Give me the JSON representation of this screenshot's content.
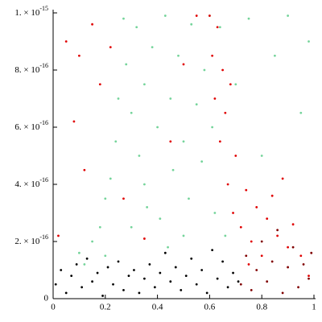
{
  "chart_data": {
    "type": "scatter",
    "xlim": [
      0,
      1
    ],
    "ylim": [
      0,
      1e-15
    ],
    "xticks": [
      0,
      0.2,
      0.4,
      0.6,
      0.8,
      1
    ],
    "yticks": [
      0,
      {
        "value": 2e-16,
        "label": "2. × 10",
        "exponent": "-16"
      },
      {
        "value": 4e-16,
        "label": "4. × 10",
        "exponent": "-16"
      },
      {
        "value": 6e-16,
        "label": "6. × 10",
        "exponent": "-16"
      },
      {
        "value": 8e-16,
        "label": "8. × 10",
        "exponent": "-16"
      },
      {
        "value": 1e-15,
        "label": "1. × 10",
        "exponent": "-15"
      }
    ],
    "series": [
      {
        "color": "#74d49a",
        "x": [
          0.12,
          0.15,
          0.18,
          0.2,
          0.22,
          0.24,
          0.25,
          0.27,
          0.28,
          0.3,
          0.32,
          0.33,
          0.35,
          0.36,
          0.38,
          0.4,
          0.41,
          0.43,
          0.45,
          0.46,
          0.48,
          0.5,
          0.52,
          0.53,
          0.55,
          0.57,
          0.58,
          0.6,
          0.61,
          0.62,
          0.64,
          0.66,
          0.7,
          0.75,
          0.8,
          0.85,
          0.9,
          0.95,
          0.98,
          0.3,
          0.44,
          0.2,
          0.1,
          0.35,
          0.5
        ],
        "values": [
          1.2e-16,
          2e-16,
          2.5e-16,
          3.5e-16,
          4.2e-16,
          5.5e-16,
          7e-16,
          9.8e-16,
          8.2e-16,
          6.5e-16,
          9.5e-16,
          5e-16,
          7.5e-16,
          3.2e-16,
          8.8e-16,
          6e-16,
          2.8e-16,
          9.9e-16,
          7e-16,
          4.5e-16,
          8.5e-16,
          5.5e-16,
          3.5e-16,
          9.6e-16,
          6.8e-16,
          4.8e-16,
          8e-16,
          9.9e-16,
          6e-16,
          3e-16,
          9.5e-16,
          2.2e-16,
          7.5e-16,
          9.8e-16,
          5e-16,
          8.5e-16,
          9.9e-16,
          6.5e-16,
          9e-16,
          2.5e-16,
          1.8e-16,
          1.5e-16,
          1.6e-16,
          4e-16,
          2.2e-16
        ]
      },
      {
        "color": "#e00000",
        "x": [
          0.02,
          0.05,
          0.08,
          0.1,
          0.12,
          0.15,
          0.18,
          0.22,
          0.27,
          0.6,
          0.61,
          0.62,
          0.63,
          0.64,
          0.65,
          0.66,
          0.67,
          0.68,
          0.69,
          0.7,
          0.72,
          0.74,
          0.76,
          0.78,
          0.8,
          0.82,
          0.84,
          0.86,
          0.88,
          0.9,
          0.92,
          0.95,
          0.98,
          0.55,
          0.45,
          0.35,
          0.75,
          0.5
        ],
        "values": [
          2.2e-16,
          9e-16,
          6.2e-16,
          8.5e-16,
          4.5e-16,
          9.6e-16,
          7.5e-16,
          8.8e-16,
          3.5e-16,
          9.9e-16,
          8.5e-16,
          7e-16,
          9.5e-16,
          5.5e-16,
          8e-16,
          6.5e-16,
          4e-16,
          7.5e-16,
          3e-16,
          5e-16,
          2.5e-16,
          3.8e-16,
          2e-16,
          3.2e-16,
          1.5e-16,
          2.8e-16,
          3.6e-16,
          2.2e-16,
          4.2e-16,
          1.8e-16,
          2.6e-16,
          1.5e-16,
          8e-17,
          9.9e-16,
          5.5e-16,
          2.1e-16,
          1.2e-16,
          8.2e-16
        ]
      },
      {
        "color": "#000000",
        "x": [
          0.01,
          0.03,
          0.05,
          0.07,
          0.09,
          0.11,
          0.13,
          0.15,
          0.17,
          0.19,
          0.21,
          0.23,
          0.25,
          0.27,
          0.29,
          0.31,
          0.33,
          0.35,
          0.37,
          0.39,
          0.41,
          0.43,
          0.45,
          0.47,
          0.49,
          0.51,
          0.53,
          0.55,
          0.57,
          0.59,
          0.61,
          0.63,
          0.65,
          0.67,
          0.69,
          0.71
        ],
        "values": [
          5e-17,
          1e-16,
          2e-17,
          8e-17,
          1.2e-16,
          4e-17,
          1.4e-16,
          6e-17,
          9e-17,
          1e-17,
          1.1e-16,
          5e-17,
          1.3e-16,
          3e-17,
          8e-17,
          1e-16,
          2e-17,
          7e-17,
          1.2e-16,
          4e-17,
          9e-17,
          1.6e-16,
          6e-17,
          1.1e-16,
          3e-17,
          8e-17,
          1.4e-16,
          5e-17,
          1e-16,
          2e-17,
          1.7e-16,
          7e-17,
          1.3e-16,
          4e-17,
          9e-17,
          6e-17
        ]
      },
      {
        "color": "#800000",
        "x": [
          0.72,
          0.74,
          0.76,
          0.78,
          0.8,
          0.82,
          0.84,
          0.86,
          0.88,
          0.9,
          0.92,
          0.94,
          0.96,
          0.98,
          0.99
        ],
        "values": [
          5e-17,
          1.5e-16,
          3e-17,
          1e-16,
          2e-16,
          6e-17,
          1.3e-16,
          2.4e-16,
          2e-17,
          1.1e-16,
          1.8e-16,
          4e-17,
          1.2e-16,
          7e-17,
          1.6e-16
        ]
      }
    ]
  }
}
